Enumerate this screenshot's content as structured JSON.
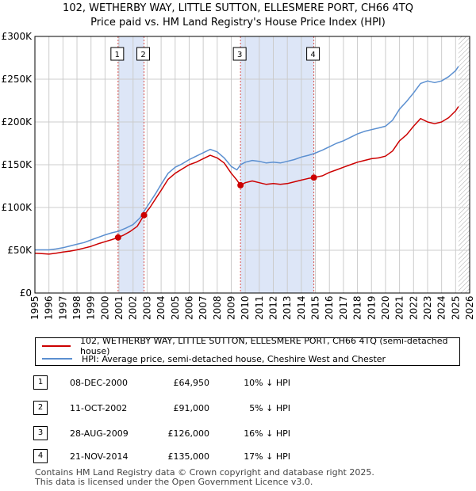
{
  "title_line1": "102, WETHERBY WAY, LITTLE SUTTON, ELLESMERE PORT, CH66 4TQ",
  "title_line2": "Price paid vs. HM Land Registry's House Price Index (HPI)",
  "colors": {
    "price": "#cc0000",
    "hpi": "#5b8fd0",
    "shade": "#dde6f7",
    "marker_line": "#d9534f",
    "grid": "#cccccc"
  },
  "chart_data": {
    "type": "line",
    "x_range": [
      1995,
      2026
    ],
    "ylim": [
      0,
      300000
    ],
    "y_ticks": [
      {
        "value": 0,
        "label": "£0"
      },
      {
        "value": 50000,
        "label": "£50K"
      },
      {
        "value": 100000,
        "label": "£100K"
      },
      {
        "value": 150000,
        "label": "£150K"
      },
      {
        "value": 200000,
        "label": "£200K"
      },
      {
        "value": 250000,
        "label": "£250K"
      },
      {
        "value": 300000,
        "label": "£300K"
      }
    ],
    "x_ticks": [
      "1995",
      "1996",
      "1997",
      "1998",
      "1999",
      "2000",
      "2001",
      "2002",
      "2003",
      "2004",
      "2005",
      "2006",
      "2007",
      "2008",
      "2009",
      "2010",
      "2011",
      "2012",
      "2013",
      "2014",
      "2015",
      "2016",
      "2017",
      "2018",
      "2019",
      "2020",
      "2021",
      "2022",
      "2023",
      "2024",
      "2025",
      "2026"
    ],
    "shaded_ranges": [
      [
        2000.93,
        2002.78
      ],
      [
        2009.66,
        2014.89
      ]
    ],
    "data_end": 2025.2,
    "series": [
      {
        "name": "102, WETHERBY WAY, LITTLE SUTTON, ELLESMERE PORT, CH66 4TQ (semi-detached house)",
        "key": "price",
        "points": [
          [
            1995,
            46500
          ],
          [
            1995.5,
            46000
          ],
          [
            1996,
            45500
          ],
          [
            1996.5,
            46500
          ],
          [
            1997,
            48000
          ],
          [
            1997.5,
            49000
          ],
          [
            1998,
            50500
          ],
          [
            1998.5,
            52500
          ],
          [
            1999,
            54500
          ],
          [
            1999.5,
            57500
          ],
          [
            2000,
            60000
          ],
          [
            2000.5,
            62500
          ],
          [
            2000.93,
            64950
          ],
          [
            2001.3,
            67500
          ],
          [
            2001.8,
            72000
          ],
          [
            2002.3,
            78000
          ],
          [
            2002.78,
            91000
          ],
          [
            2003.2,
            100000
          ],
          [
            2003.6,
            110000
          ],
          [
            2004,
            120000
          ],
          [
            2004.5,
            133000
          ],
          [
            2005,
            140000
          ],
          [
            2005.5,
            145000
          ],
          [
            2006,
            150000
          ],
          [
            2006.5,
            153000
          ],
          [
            2007,
            157000
          ],
          [
            2007.5,
            161000
          ],
          [
            2008,
            158000
          ],
          [
            2008.5,
            152000
          ],
          [
            2009,
            140000
          ],
          [
            2009.4,
            132000
          ],
          [
            2009.66,
            126000
          ],
          [
            2010,
            129000
          ],
          [
            2010.5,
            131000
          ],
          [
            2011,
            129000
          ],
          [
            2011.5,
            127000
          ],
          [
            2012,
            128000
          ],
          [
            2012.5,
            127000
          ],
          [
            2013,
            128000
          ],
          [
            2013.5,
            130000
          ],
          [
            2014,
            132000
          ],
          [
            2014.5,
            134000
          ],
          [
            2014.89,
            135000
          ],
          [
            2015.5,
            137000
          ],
          [
            2016,
            141000
          ],
          [
            2016.5,
            144000
          ],
          [
            2017,
            147000
          ],
          [
            2017.5,
            150000
          ],
          [
            2018,
            153000
          ],
          [
            2018.5,
            155000
          ],
          [
            2019,
            157000
          ],
          [
            2019.5,
            158000
          ],
          [
            2020,
            160000
          ],
          [
            2020.5,
            166000
          ],
          [
            2021,
            178000
          ],
          [
            2021.5,
            185000
          ],
          [
            2022,
            195000
          ],
          [
            2022.5,
            204000
          ],
          [
            2023,
            200000
          ],
          [
            2023.5,
            198000
          ],
          [
            2024,
            200000
          ],
          [
            2024.5,
            205000
          ],
          [
            2025,
            213000
          ],
          [
            2025.2,
            218000
          ]
        ]
      },
      {
        "name": "HPI: Average price, semi-detached house, Cheshire West and Chester",
        "key": "hpi",
        "points": [
          [
            1995,
            50500
          ],
          [
            1995.5,
            50500
          ],
          [
            1996,
            50500
          ],
          [
            1996.5,
            51500
          ],
          [
            1997,
            53000
          ],
          [
            1997.5,
            55000
          ],
          [
            1998,
            57000
          ],
          [
            1998.5,
            59000
          ],
          [
            1999,
            62000
          ],
          [
            1999.5,
            65000
          ],
          [
            2000,
            68000
          ],
          [
            2000.5,
            70500
          ],
          [
            2000.93,
            72000
          ],
          [
            2001.5,
            76000
          ],
          [
            2002,
            80000
          ],
          [
            2002.5,
            88000
          ],
          [
            2002.78,
            95500
          ],
          [
            2003.2,
            106000
          ],
          [
            2003.6,
            116000
          ],
          [
            2004,
            127000
          ],
          [
            2004.5,
            140000
          ],
          [
            2005,
            147000
          ],
          [
            2005.5,
            151000
          ],
          [
            2006,
            156000
          ],
          [
            2006.5,
            160000
          ],
          [
            2007,
            164000
          ],
          [
            2007.5,
            168000
          ],
          [
            2008,
            165000
          ],
          [
            2008.5,
            158000
          ],
          [
            2009,
            148000
          ],
          [
            2009.4,
            144000
          ],
          [
            2009.66,
            150000
          ],
          [
            2010,
            153000
          ],
          [
            2010.5,
            155000
          ],
          [
            2011,
            154000
          ],
          [
            2011.5,
            152000
          ],
          [
            2012,
            153000
          ],
          [
            2012.5,
            152000
          ],
          [
            2013,
            154000
          ],
          [
            2013.5,
            156000
          ],
          [
            2014,
            159000
          ],
          [
            2014.5,
            161000
          ],
          [
            2014.89,
            163000
          ],
          [
            2015.5,
            167000
          ],
          [
            2016,
            171000
          ],
          [
            2016.5,
            175000
          ],
          [
            2017,
            178000
          ],
          [
            2017.5,
            182000
          ],
          [
            2018,
            186000
          ],
          [
            2018.5,
            189000
          ],
          [
            2019,
            191000
          ],
          [
            2019.5,
            193000
          ],
          [
            2020,
            195000
          ],
          [
            2020.5,
            202000
          ],
          [
            2021,
            215000
          ],
          [
            2021.5,
            224000
          ],
          [
            2022,
            234000
          ],
          [
            2022.5,
            245000
          ],
          [
            2023,
            248000
          ],
          [
            2023.5,
            246000
          ],
          [
            2024,
            248000
          ],
          [
            2024.5,
            253000
          ],
          [
            2025,
            260000
          ],
          [
            2025.2,
            265000
          ]
        ]
      }
    ],
    "markers": [
      {
        "label": "1",
        "x": 2000.93,
        "y": 64950
      },
      {
        "label": "2",
        "x": 2002.78,
        "y": 91000
      },
      {
        "label": "3",
        "x": 2009.66,
        "y": 126000
      },
      {
        "label": "4",
        "x": 2014.89,
        "y": 135000
      }
    ]
  },
  "legend": {
    "price": "102, WETHERBY WAY, LITTLE SUTTON, ELLESMERE PORT, CH66 4TQ (semi-detached house)",
    "hpi": "HPI: Average price, semi-detached house, Cheshire West and Chester"
  },
  "transactions": [
    {
      "num": "1",
      "date": "08-DEC-2000",
      "price": "£64,950",
      "hpi": "10% ↓ HPI"
    },
    {
      "num": "2",
      "date": "11-OCT-2002",
      "price": "£91,000",
      "hpi": "5% ↓ HPI"
    },
    {
      "num": "3",
      "date": "28-AUG-2009",
      "price": "£126,000",
      "hpi": "16% ↓ HPI"
    },
    {
      "num": "4",
      "date": "21-NOV-2014",
      "price": "£135,000",
      "hpi": "17% ↓ HPI"
    }
  ],
  "footer_line1": "Contains HM Land Registry data © Crown copyright and database right 2025.",
  "footer_line2": "This data is licensed under the Open Government Licence v3.0."
}
